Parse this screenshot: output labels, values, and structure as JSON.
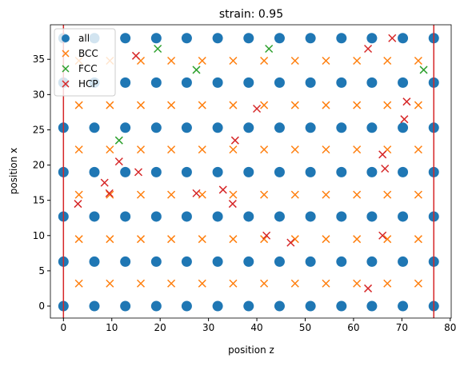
{
  "chart_data": {
    "type": "scatter",
    "title": "strain: 0.95",
    "xlabel": "position z",
    "ylabel": "position x",
    "xlim": [
      -2.7,
      80.2
    ],
    "ylim": [
      -1.7,
      39.9
    ],
    "xticks": [
      0,
      10,
      20,
      30,
      40,
      50,
      60,
      70,
      80
    ],
    "yticks": [
      0,
      5,
      10,
      15,
      20,
      25,
      30,
      35
    ],
    "vlines": [
      0,
      76.6
    ],
    "vline_color": "#d62728",
    "legend": "upper left",
    "series": [
      {
        "name": "all",
        "color": "#1f77b4",
        "marker": "o",
        "x": [
          0,
          6.4,
          12.8,
          19.2,
          25.5,
          31.9,
          38.3,
          44.7,
          51.1,
          57.5,
          63.8,
          70.2,
          76.6,
          0,
          6.4,
          12.8,
          19.2,
          25.5,
          31.9,
          38.3,
          44.7,
          51.1,
          57.5,
          63.8,
          70.2,
          76.6,
          0,
          6.4,
          12.8,
          19.2,
          25.5,
          31.9,
          38.3,
          44.7,
          51.1,
          57.5,
          63.8,
          70.2,
          76.6,
          0,
          6.4,
          12.8,
          19.2,
          25.5,
          31.9,
          38.3,
          44.7,
          51.1,
          57.5,
          63.8,
          70.2,
          76.6,
          0,
          6.4,
          12.8,
          19.2,
          25.5,
          31.9,
          38.3,
          44.7,
          51.1,
          57.5,
          63.8,
          70.2,
          76.6,
          0,
          6.4,
          12.8,
          19.2,
          25.5,
          31.9,
          38.3,
          44.7,
          51.1,
          57.5,
          63.8,
          70.2,
          76.6,
          0,
          6.4,
          12.8,
          19.2,
          25.5,
          31.9,
          38.3,
          44.7,
          51.1,
          57.5,
          63.8,
          70.2,
          76.6
        ],
        "values": [
          0,
          0,
          0,
          0,
          0,
          0,
          0,
          0,
          0,
          0,
          0,
          0,
          0,
          6.3,
          6.3,
          6.3,
          6.3,
          6.3,
          6.3,
          6.3,
          6.3,
          6.3,
          6.3,
          6.3,
          6.3,
          6.3,
          12.7,
          12.7,
          12.7,
          12.7,
          12.7,
          12.7,
          12.7,
          12.7,
          12.7,
          12.7,
          12.7,
          12.7,
          12.7,
          19,
          19,
          19,
          19,
          19,
          19,
          19,
          19,
          19,
          19,
          19,
          19,
          19,
          25.3,
          25.3,
          25.3,
          25.3,
          25.3,
          25.3,
          25.3,
          25.3,
          25.3,
          25.3,
          25.3,
          25.3,
          25.3,
          31.7,
          31.7,
          31.7,
          31.7,
          31.7,
          31.7,
          31.7,
          31.7,
          31.7,
          31.7,
          31.7,
          31.7,
          31.7,
          38,
          38,
          38,
          38,
          38,
          38,
          38,
          38,
          38,
          38,
          38,
          38,
          38
        ]
      },
      {
        "name": "BCC",
        "color": "#ff7f0e",
        "marker": "x",
        "x": [
          3.2,
          9.6,
          16,
          22.3,
          28.7,
          35.1,
          41.5,
          47.9,
          54.3,
          60.7,
          67,
          73.4,
          3.2,
          9.6,
          16,
          22.3,
          28.7,
          35.1,
          41.5,
          47.9,
          54.3,
          60.7,
          67,
          73.4,
          3.2,
          9.6,
          16,
          22.3,
          28.7,
          35.1,
          41.5,
          47.9,
          54.3,
          60.7,
          67,
          73.4,
          3.2,
          9.6,
          16,
          22.3,
          28.7,
          35.1,
          41.5,
          47.9,
          54.3,
          60.7,
          67,
          73.4,
          3.2,
          9.6,
          16,
          22.3,
          28.7,
          35.1,
          41.5,
          47.9,
          54.3,
          60.7,
          67,
          73.4,
          3.2,
          9.6,
          16,
          22.3,
          28.7,
          35.1,
          41.5,
          47.9,
          54.3,
          60.7,
          67,
          73.4
        ],
        "values": [
          3.2,
          3.2,
          3.2,
          3.2,
          3.2,
          3.2,
          3.2,
          3.2,
          3.2,
          3.2,
          3.2,
          3.2,
          9.5,
          9.5,
          9.5,
          9.5,
          9.5,
          9.5,
          9.5,
          9.5,
          9.5,
          9.5,
          9.5,
          9.5,
          15.8,
          15.8,
          15.8,
          15.8,
          15.8,
          15.8,
          15.8,
          15.8,
          15.8,
          15.8,
          15.8,
          15.8,
          22.2,
          22.2,
          22.2,
          22.2,
          22.2,
          22.2,
          22.2,
          22.2,
          22.2,
          22.2,
          22.2,
          22.2,
          28.5,
          28.5,
          28.5,
          28.5,
          28.5,
          28.5,
          28.5,
          28.5,
          28.5,
          28.5,
          28.5,
          28.5,
          34.8,
          34.8,
          34.8,
          34.8,
          34.8,
          34.8,
          34.8,
          34.8,
          34.8,
          34.8,
          34.8,
          34.8
        ]
      },
      {
        "name": "FCC",
        "color": "#2ca02c",
        "marker": "x",
        "x": [
          19.5,
          27.5,
          42.5,
          74.5,
          11.5
        ],
        "values": [
          36.5,
          33.5,
          36.5,
          33.5,
          23.5
        ]
      },
      {
        "name": "HCP",
        "color": "#d62728",
        "marker": "x",
        "x": [
          15,
          63,
          68,
          71,
          70.5,
          40,
          35.5,
          66,
          66.5,
          11.5,
          15.5,
          8.5,
          9.5,
          27.5,
          33,
          35,
          3,
          42,
          47,
          66,
          63
        ],
        "values": [
          35.5,
          36.5,
          38,
          29,
          26.5,
          28,
          23.5,
          21.5,
          19.5,
          20.5,
          19,
          17.5,
          16,
          16,
          16.5,
          14.5,
          14.5,
          10,
          9,
          10,
          2.5
        ]
      }
    ]
  }
}
